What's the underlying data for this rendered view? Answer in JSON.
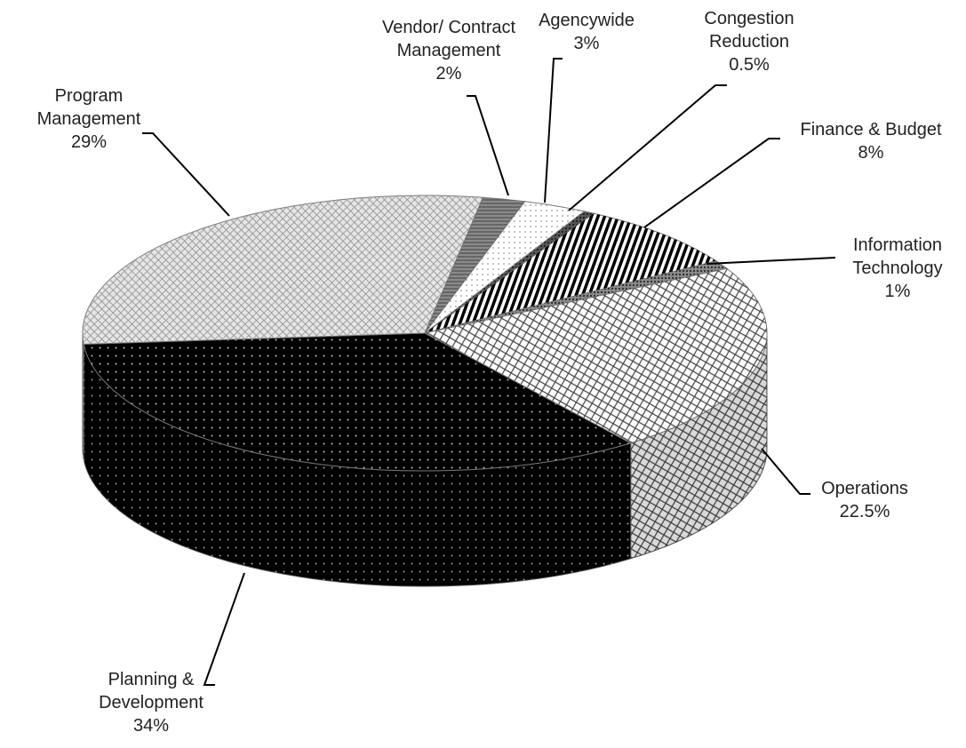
{
  "chart_data": {
    "type": "pie",
    "categories": [
      "Agencywide",
      "Congestion Reduction",
      "Finance & Budget",
      "Information Technology",
      "Operations",
      "Planning & Development",
      "Program Management",
      "Vendor/ Contract Management"
    ],
    "values": [
      3,
      0.5,
      8,
      1,
      22.5,
      34,
      29,
      2
    ],
    "value_labels": [
      "3%",
      "0.5%",
      "8%",
      "1%",
      "22.5%",
      "34%",
      "29%",
      "2%"
    ],
    "colors": [
      "#ffffff",
      "#555555",
      "#ffffff",
      "#888888",
      "#ffffff",
      "#000000",
      "#e6e6e6",
      "#8a8a8a"
    ]
  }
}
